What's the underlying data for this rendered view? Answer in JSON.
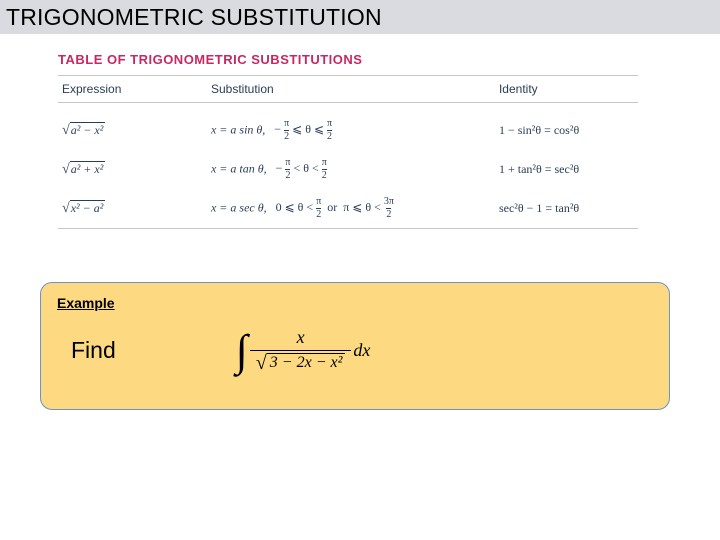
{
  "header": {
    "title": "TRIGONOMETRIC SUBSTITUTION"
  },
  "table": {
    "title": "TABLE OF TRIGONOMETRIC SUBSTITUTIONS",
    "columns": {
      "c1": "Expression",
      "c2": "Substitution",
      "c3": "Identity"
    },
    "rows": [
      {
        "expr_rad": "a² − x²",
        "sub_prefix": "x = a sin θ,",
        "range_html": "− <span class='mf'><span class='n'>π</span><span class='d'>2</span></span> ⩽ θ ⩽ <span class='mf'><span class='n'>π</span><span class='d'>2</span></span>",
        "ident": "1 − sin²θ = cos²θ"
      },
      {
        "expr_rad": "a² + x²",
        "sub_prefix": "x = a tan θ,",
        "range_html": "− <span class='mf'><span class='n'>π</span><span class='d'>2</span></span> < θ < <span class='mf'><span class='n'>π</span><span class='d'>2</span></span>",
        "ident": "1 + tan²θ = sec²θ"
      },
      {
        "expr_rad": "x² − a²",
        "sub_prefix": "x = a sec θ,",
        "range_html": "0 ⩽ θ < <span class='mf'><span class='n'>π</span><span class='d'>2</span></span>&nbsp; or &nbsp;π ⩽ θ < <span class='mf'><span class='n'>3π</span><span class='d'>2</span></span>",
        "ident": "sec²θ − 1 = tan²θ"
      }
    ]
  },
  "example": {
    "label": "Example",
    "find": "Find",
    "integral_num": "x",
    "integral_rad": "3 − 2x − x²",
    "integral_dx": "dx"
  },
  "colors": {
    "header_bg": "#d9dbe0",
    "table_title": "#c62962",
    "table_text": "#2a3d55",
    "rule": "#c6c6c6",
    "box_bg": "#fdd981",
    "box_border": "#6a94c8"
  }
}
